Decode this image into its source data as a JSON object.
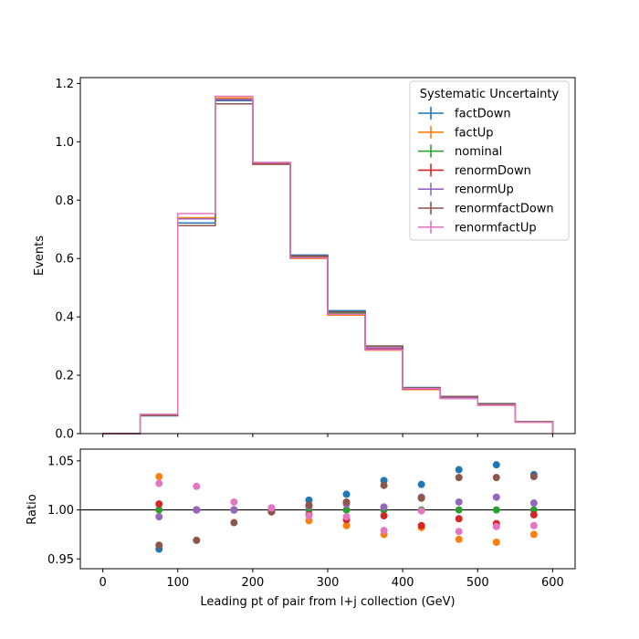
{
  "chart_data": [
    {
      "type": "step",
      "panel": "main",
      "xlim": [
        -30,
        630
      ],
      "ylim": [
        0,
        1.22
      ],
      "ylabel": "Events",
      "yticks": [
        0.0,
        0.2,
        0.4,
        0.6,
        0.8,
        1.0,
        1.2
      ],
      "yticklabels": [
        "0.0",
        "0.2",
        "0.4",
        "0.6",
        "0.8",
        "1.0",
        "1.2"
      ],
      "bin_edges": [
        0,
        50,
        100,
        150,
        200,
        250,
        300,
        350,
        400,
        450,
        500,
        550,
        600
      ],
      "legend": {
        "title": "Systematic Uncertainty",
        "placement": "top-right"
      },
      "series": [
        {
          "name": "factDown",
          "color": "#1f77b4",
          "values": [
            0.0,
            0.061,
            0.722,
            1.141,
            0.927,
            0.612,
            0.421,
            0.3,
            0.158,
            0.127,
            0.103,
            0.041
          ]
        },
        {
          "name": "factUp",
          "color": "#ff7f0e",
          "values": [
            0.0,
            0.066,
            0.74,
            1.15,
            0.925,
            0.6,
            0.406,
            0.286,
            0.151,
            0.121,
            0.097,
            0.039
          ]
        },
        {
          "name": "nominal",
          "color": "#2ca02c",
          "values": [
            0.0,
            0.064,
            0.736,
            1.145,
            0.927,
            0.606,
            0.413,
            0.293,
            0.154,
            0.123,
            0.099,
            0.04
          ]
        },
        {
          "name": "renormDown",
          "color": "#d62728",
          "values": [
            0.0,
            0.064,
            0.736,
            1.145,
            0.925,
            0.603,
            0.409,
            0.291,
            0.152,
            0.122,
            0.098,
            0.04
          ]
        },
        {
          "name": "renormUp",
          "color": "#9467bd",
          "values": [
            0.0,
            0.063,
            0.736,
            1.145,
            0.929,
            0.609,
            0.416,
            0.294,
            0.156,
            0.124,
            0.1,
            0.04
          ]
        },
        {
          "name": "renormfactDown",
          "color": "#8c564b",
          "values": [
            0.0,
            0.062,
            0.713,
            1.13,
            0.923,
            0.609,
            0.417,
            0.3,
            0.156,
            0.127,
            0.102,
            0.041
          ]
        },
        {
          "name": "renormfactUp",
          "color": "#e377c2",
          "values": [
            0.0,
            0.066,
            0.754,
            1.156,
            0.929,
            0.602,
            0.409,
            0.287,
            0.154,
            0.12,
            0.097,
            0.039
          ]
        }
      ]
    },
    {
      "type": "scatter",
      "panel": "ratio",
      "xlim": [
        -30,
        630
      ],
      "ylim": [
        0.94,
        1.062
      ],
      "xlabel": "Leading pt of pair from l+j collection (GeV)",
      "ylabel": "Ratio",
      "reference_line": 1.0,
      "xticks": [
        0,
        100,
        200,
        300,
        400,
        500,
        600
      ],
      "xticklabels": [
        "0",
        "100",
        "200",
        "300",
        "400",
        "500",
        "600"
      ],
      "yticks": [
        0.95,
        1.0,
        1.05
      ],
      "yticklabels": [
        "0.95",
        "1.00",
        "1.05"
      ],
      "x": [
        75,
        125,
        175,
        225,
        275,
        325,
        375,
        425,
        475,
        525,
        575
      ],
      "series": [
        {
          "name": "factDown",
          "color": "#1f77b4",
          "values": [
            0.96,
            1.0,
            1.0,
            1.0,
            1.01,
            1.016,
            1.03,
            1.026,
            1.041,
            1.046,
            1.036
          ]
        },
        {
          "name": "factUp",
          "color": "#ff7f0e",
          "values": [
            1.034,
            1.0,
            1.0,
            0.998,
            0.989,
            0.984,
            0.975,
            0.982,
            0.97,
            0.967,
            0.975
          ]
        },
        {
          "name": "nominal",
          "color": "#2ca02c",
          "values": [
            1.0,
            1.0,
            1.0,
            1.0,
            1.0,
            1.0,
            1.0,
            1.0,
            1.0,
            1.0,
            1.0
          ]
        },
        {
          "name": "renormDown",
          "color": "#d62728",
          "values": [
            1.006,
            1.0,
            1.0,
            0.998,
            0.995,
            0.99,
            0.994,
            0.984,
            0.991,
            0.986,
            0.995
          ]
        },
        {
          "name": "renormUp",
          "color": "#9467bd",
          "values": [
            0.993,
            1.0,
            1.0,
            1.002,
            1.004,
            1.006,
            1.003,
            1.013,
            1.008,
            1.013,
            1.007
          ]
        },
        {
          "name": "renormfactDown",
          "color": "#8c564b",
          "values": [
            0.964,
            0.969,
            0.987,
            0.998,
            1.005,
            1.008,
            1.025,
            1.012,
            1.033,
            1.033,
            1.034
          ]
        },
        {
          "name": "renormfactUp",
          "color": "#e377c2",
          "values": [
            1.027,
            1.024,
            1.008,
            1.002,
            0.994,
            0.993,
            0.979,
            0.999,
            0.978,
            0.983,
            0.984
          ]
        }
      ]
    }
  ]
}
